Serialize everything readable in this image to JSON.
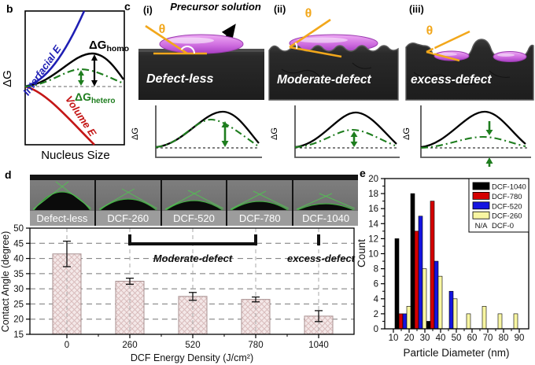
{
  "panels": {
    "b": {
      "label": "b",
      "ylabel": "ΔG",
      "xlabel": "Nucleus Size",
      "interfacial_label": "Interfacial E",
      "volume_label": "Volume E",
      "homo_main": "ΔG",
      "homo_sub": "homo",
      "hetero_main": "ΔG",
      "hetero_sub": "hetero",
      "colors": {
        "interfacial": "#1f1fb4",
        "volume": "#c41616",
        "hetero": "#1e7d1e",
        "homo": "#000000"
      }
    },
    "c": {
      "label": "c",
      "annotation": "Precursor solution",
      "theta": "θ",
      "mini_ylabel": "ΔG",
      "items": [
        {
          "index": "(i)",
          "title": "Defect-less"
        },
        {
          "index": "(ii)",
          "title": "Moderate-defect"
        },
        {
          "index": "(iii)",
          "title": "excess-defect"
        }
      ],
      "colors": {
        "drop": "#cf6ee0",
        "angle": "#f2a71b",
        "substrate": "#262626"
      }
    },
    "d": {
      "label": "d"
    },
    "e": {
      "label": "e"
    }
  },
  "chart_data": [
    {
      "type": "bar",
      "panel": "d",
      "categories": [
        0,
        260,
        520,
        780,
        1040
      ],
      "values": [
        41.5,
        32.5,
        27.5,
        26.5,
        21
      ],
      "errors": [
        4.2,
        1.0,
        1.3,
        0.8,
        1.8
      ],
      "xlabel": "DCF Energy Density (J/cm²)",
      "ylabel": "Contact  Angle (degree)",
      "ylim": [
        15,
        50
      ],
      "ytick_step": 5,
      "grid": "dashed",
      "bar_fill": "#f4e8e8",
      "bar_hatch": "#d9bcbc",
      "image_labels": [
        "Defect-less",
        "DCF-260",
        "DCF-520",
        "DCF-780",
        "DCF-1040"
      ],
      "annotations": [
        {
          "type": "bracket",
          "text": "Moderate-defect",
          "from_cat": 1,
          "to_cat": 3
        },
        {
          "type": "tick",
          "text": "excess-defect",
          "at_cat": 4
        }
      ]
    },
    {
      "type": "bar",
      "panel": "e",
      "xlabel": "Particle Diameter (nm)",
      "ylabel": "Count",
      "xlim": [
        5,
        95
      ],
      "ylim": [
        0,
        20
      ],
      "xtick_step": 10,
      "ytick_step": 2,
      "bin_width": 2.5,
      "legend_position": "top-right",
      "series": [
        {
          "name": "DCF-1040",
          "color": "#000000",
          "points": [
            [
              11,
              12
            ],
            [
              21,
              18
            ],
            [
              31,
              1
            ]
          ]
        },
        {
          "name": "DCF-780",
          "color": "#d40000",
          "points": [
            [
              13.5,
              2
            ],
            [
              23.5,
              13
            ],
            [
              33.5,
              17
            ]
          ]
        },
        {
          "name": "DCF-520",
          "color": "#1414e0",
          "points": [
            [
              16,
              2
            ],
            [
              26,
              15
            ],
            [
              36,
              9
            ],
            [
              45.5,
              5
            ]
          ]
        },
        {
          "name": "DCF-260",
          "color": "#f8f6a2",
          "points": [
            [
              18.5,
              3
            ],
            [
              28.5,
              8
            ],
            [
              38.5,
              7
            ],
            [
              48,
              4
            ],
            [
              56.5,
              2
            ],
            [
              66.5,
              3
            ],
            [
              76.5,
              2
            ],
            [
              86.5,
              2
            ]
          ]
        }
      ],
      "legend_extra": {
        "na": "N/A",
        "name": "DCF-0"
      }
    }
  ]
}
